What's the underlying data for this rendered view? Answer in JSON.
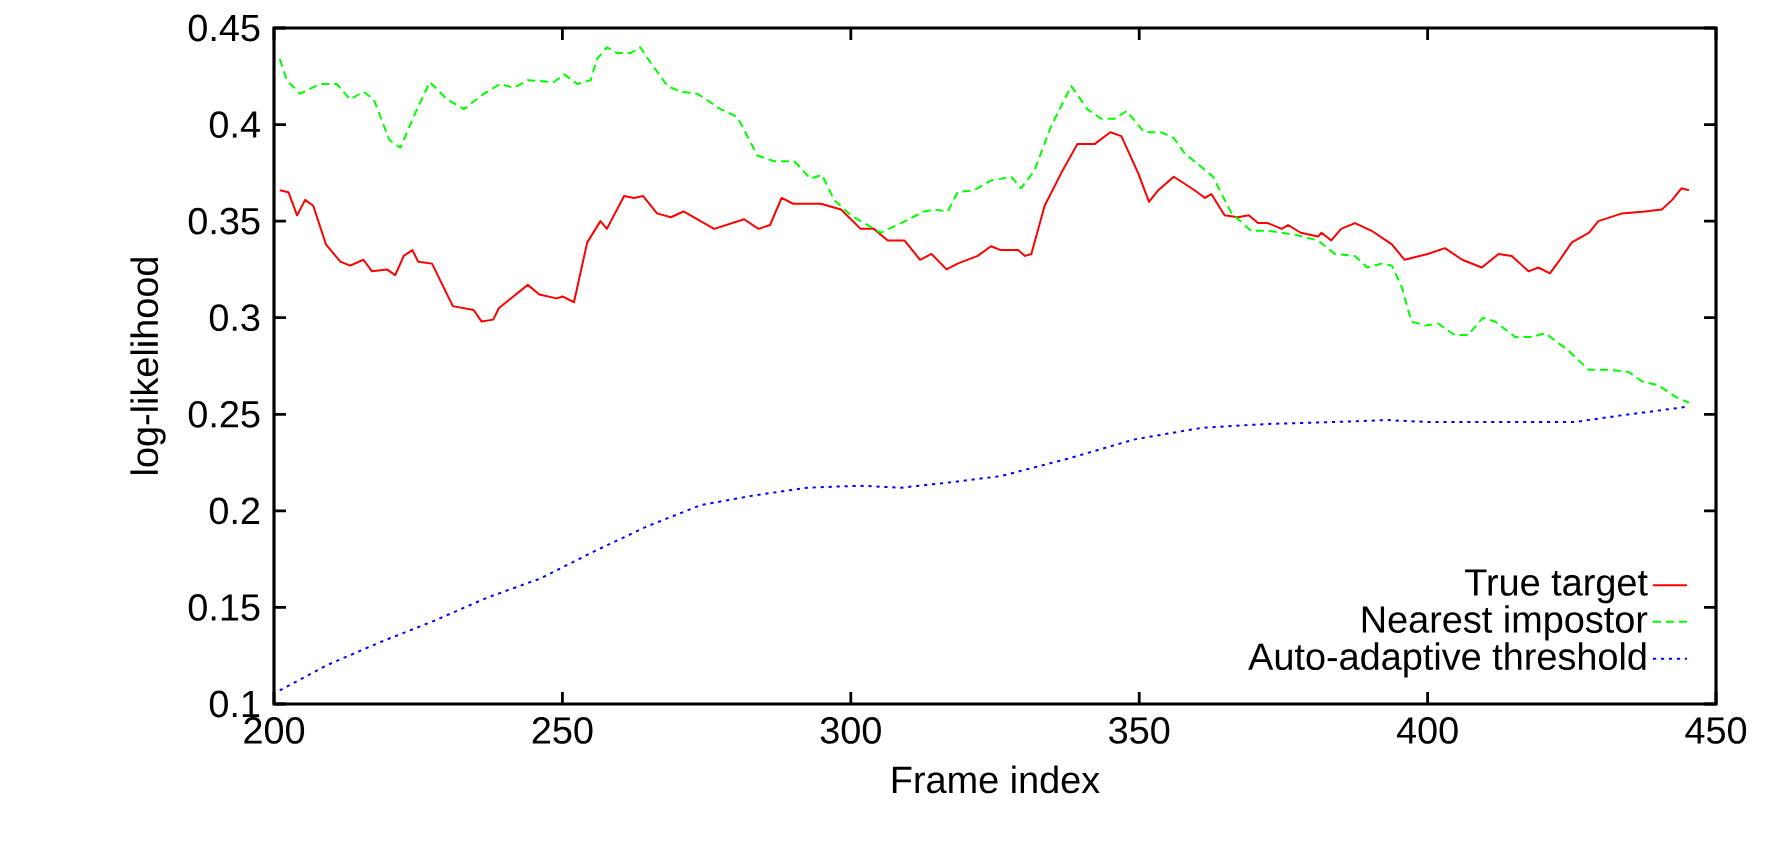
{
  "chart_data": {
    "type": "line",
    "xlabel": "Frame index",
    "ylabel": "log-likelihood",
    "xlim": [
      200,
      450
    ],
    "ylim": [
      0.1,
      0.45
    ],
    "xticks": [
      200,
      250,
      300,
      350,
      400,
      450
    ],
    "yticks": [
      0.1,
      0.15,
      0.2,
      0.25,
      0.3,
      0.35,
      0.4,
      0.45
    ],
    "grid": false,
    "legend": "bottom right",
    "marker": "none",
    "series": [
      {
        "name": "True target",
        "color": "#ff0000",
        "line_style": "solid",
        "x": [
          201,
          202.5,
          204,
          205.4,
          206.8,
          209,
          211.5,
          213.2,
          215.5,
          217,
          219.6,
          221,
          222.5,
          224,
          225,
          227.4,
          231,
          234.6,
          236,
          238,
          239,
          244,
          246,
          249,
          250,
          252,
          254.3,
          256.6,
          257.7,
          260.7,
          262.4,
          264,
          266.4,
          268.8,
          271,
          276.3,
          281.5,
          284,
          286,
          288,
          290,
          294.8,
          298.3,
          301.7,
          304,
          306.4,
          309.3,
          312,
          314,
          316.6,
          318.5,
          322,
          324.3,
          326,
          329,
          330.2,
          331.3,
          333.6,
          336.5,
          339.3,
          342.3,
          345,
          346.9,
          349.8,
          351.7,
          353.3,
          356,
          359.6,
          361.4,
          362.5,
          364.8,
          367.1,
          369,
          370.6,
          372.3,
          374.7,
          375.8,
          378,
          381,
          381.6,
          383.3,
          385,
          387.4,
          390.3,
          393.8,
          396,
          400,
          403,
          406,
          409.4,
          412.3,
          414.6,
          417.5,
          419.2,
          421.2,
          422.7,
          425,
          428,
          429.6,
          433.7,
          437.7,
          440.6,
          442.4,
          444,
          445.3
        ],
        "values": [
          0.366,
          0.365,
          0.353,
          0.361,
          0.358,
          0.338,
          0.329,
          0.327,
          0.33,
          0.324,
          0.325,
          0.322,
          0.332,
          0.335,
          0.329,
          0.328,
          0.306,
          0.304,
          0.298,
          0.299,
          0.305,
          0.317,
          0.312,
          0.31,
          0.311,
          0.308,
          0.339,
          0.35,
          0.346,
          0.363,
          0.362,
          0.363,
          0.354,
          0.352,
          0.355,
          0.346,
          0.351,
          0.346,
          0.348,
          0.362,
          0.359,
          0.359,
          0.356,
          0.346,
          0.346,
          0.34,
          0.34,
          0.33,
          0.333,
          0.325,
          0.328,
          0.332,
          0.337,
          0.335,
          0.335,
          0.332,
          0.333,
          0.358,
          0.375,
          0.39,
          0.39,
          0.396,
          0.394,
          0.375,
          0.36,
          0.366,
          0.373,
          0.366,
          0.362,
          0.364,
          0.353,
          0.352,
          0.353,
          0.349,
          0.349,
          0.346,
          0.348,
          0.344,
          0.342,
          0.344,
          0.34,
          0.346,
          0.349,
          0.345,
          0.338,
          0.33,
          0.333,
          0.336,
          0.33,
          0.326,
          0.333,
          0.332,
          0.324,
          0.326,
          0.323,
          0.329,
          0.339,
          0.344,
          0.35,
          0.354,
          0.355,
          0.356,
          0.361,
          0.367,
          0.366
        ]
      },
      {
        "name": "Nearest impostor",
        "color": "#00ff00",
        "line_style": "dashed",
        "x": [
          201,
          202.2,
          204.5,
          208,
          210.9,
          213.2,
          215.5,
          217.3,
          220,
          221.9,
          224.2,
          227,
          230,
          232.9,
          236.4,
          239.2,
          241.6,
          244,
          248.5,
          250.3,
          252.6,
          254.9,
          256,
          257.7,
          259.5,
          261.8,
          263.5,
          265.3,
          268.2,
          270.5,
          273.4,
          277.4,
          280.3,
          283.8,
          286.7,
          290.2,
          293,
          295,
          297.1,
          300,
          305.2,
          308.7,
          312.7,
          314.5,
          316.8,
          318.5,
          321.4,
          324.3,
          327.8,
          329.5,
          331.8,
          334.7,
          338.2,
          341,
          343.4,
          345.7,
          347.8,
          350.9,
          353.8,
          356,
          357.9,
          360.8,
          362.8,
          366,
          369.4,
          372.3,
          377,
          381,
          383.9,
          387.4,
          389.5,
          392,
          393.8,
          395.5,
          397.2,
          399.6,
          401.8,
          404.7,
          407,
          409.6,
          411.7,
          415.2,
          418,
          420.4,
          424.4,
          427.9,
          431.3,
          434.8,
          437.2,
          440,
          443,
          445.3
        ],
        "values": [
          0.434,
          0.423,
          0.416,
          0.421,
          0.421,
          0.413,
          0.417,
          0.413,
          0.392,
          0.388,
          0.404,
          0.422,
          0.413,
          0.408,
          0.416,
          0.421,
          0.419,
          0.423,
          0.422,
          0.426,
          0.421,
          0.423,
          0.434,
          0.44,
          0.437,
          0.437,
          0.44,
          0.432,
          0.42,
          0.417,
          0.416,
          0.408,
          0.404,
          0.384,
          0.381,
          0.381,
          0.372,
          0.374,
          0.361,
          0.353,
          0.344,
          0.349,
          0.355,
          0.356,
          0.355,
          0.365,
          0.366,
          0.371,
          0.373,
          0.367,
          0.376,
          0.399,
          0.42,
          0.408,
          0.403,
          0.403,
          0.407,
          0.396,
          0.396,
          0.393,
          0.385,
          0.378,
          0.373,
          0.354,
          0.345,
          0.345,
          0.343,
          0.34,
          0.333,
          0.332,
          0.326,
          0.328,
          0.327,
          0.316,
          0.298,
          0.296,
          0.297,
          0.291,
          0.291,
          0.3,
          0.298,
          0.29,
          0.29,
          0.292,
          0.283,
          0.273,
          0.273,
          0.272,
          0.267,
          0.265,
          0.259,
          0.256
        ]
      },
      {
        "name": "Auto-adaptive threshold",
        "color": "#0000ff",
        "line_style": "dotted",
        "x": [
          201,
          209.1,
          218.4,
          227.7,
          236.9,
          246.2,
          255.5,
          264.7,
          274,
          283.2,
          292.5,
          301.7,
          308.7,
          318,
          326,
          337.6,
          349.2,
          360.8,
          372.3,
          384,
          393,
          400,
          412.7,
          425.6,
          432.5,
          445.3
        ],
        "values": [
          0.107,
          0.12,
          0.132,
          0.143,
          0.155,
          0.165,
          0.179,
          0.192,
          0.203,
          0.208,
          0.212,
          0.213,
          0.212,
          0.215,
          0.218,
          0.227,
          0.237,
          0.243,
          0.245,
          0.246,
          0.247,
          0.246,
          0.246,
          0.246,
          0.249,
          0.254
        ]
      }
    ]
  }
}
